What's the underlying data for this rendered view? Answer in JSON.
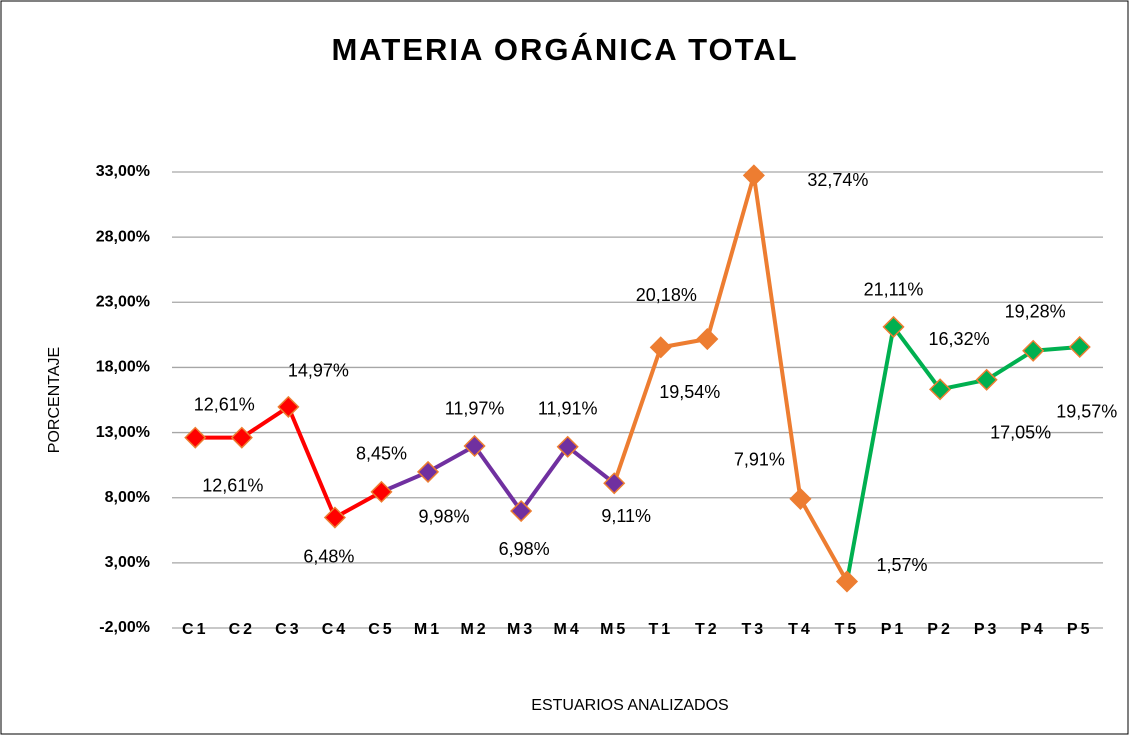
{
  "chart_data": {
    "type": "line",
    "title": "MATERIA ORGÁNICA TOTAL",
    "y_label": "PORCENTAJE",
    "x_label": "ESTUARIOS ANALIZADOS",
    "categories": [
      "C1",
      "C2",
      "C3",
      "C4",
      "C5",
      "M1",
      "M2",
      "M3",
      "M4",
      "M5",
      "T1",
      "T2",
      "T3",
      "T4",
      "T5",
      "P1",
      "P2",
      "P3",
      "P4",
      "P5"
    ],
    "values": [
      12.61,
      12.61,
      14.97,
      6.48,
      8.45,
      9.98,
      11.97,
      6.98,
      11.91,
      9.11,
      19.54,
      20.18,
      32.74,
      7.91,
      1.57,
      21.11,
      16.32,
      17.05,
      19.28,
      19.57
    ],
    "value_labels": [
      "12,61%",
      "12,61%",
      "14,97%",
      "6,48%",
      "8,45%",
      "9,98%",
      "11,97%",
      "6,98%",
      "11,91%",
      "9,11%",
      "19,54%",
      "20,18%",
      "32,74%",
      "7,91%",
      "1,57%",
      "21,11%",
      "16,32%",
      "17,05%",
      "19,28%",
      "19,57%"
    ],
    "point_colors": [
      "#ff0000",
      "#ff0000",
      "#ff0000",
      "#ff0000",
      "#ff0000",
      "#7030a0",
      "#7030a0",
      "#7030a0",
      "#7030a0",
      "#7030a0",
      "#ed7d31",
      "#ed7d31",
      "#ed7d31",
      "#ed7d31",
      "#ed7d31",
      "#00b050",
      "#00b050",
      "#00b050",
      "#00b050",
      "#00b050"
    ],
    "marker_edge_color": "#ed7d31",
    "ylim": [
      -2,
      33
    ],
    "yticks": [
      {
        "value": -2,
        "label": "-2,00%"
      },
      {
        "value": 3,
        "label": "3,00%"
      },
      {
        "value": 8,
        "label": "8,00%"
      },
      {
        "value": 13,
        "label": "13,00%"
      },
      {
        "value": 18,
        "label": "18,00%"
      },
      {
        "value": 23,
        "label": "23,00%"
      },
      {
        "value": 28,
        "label": "28,00%"
      },
      {
        "value": 33,
        "label": "33,00%"
      }
    ],
    "grid": true
  }
}
